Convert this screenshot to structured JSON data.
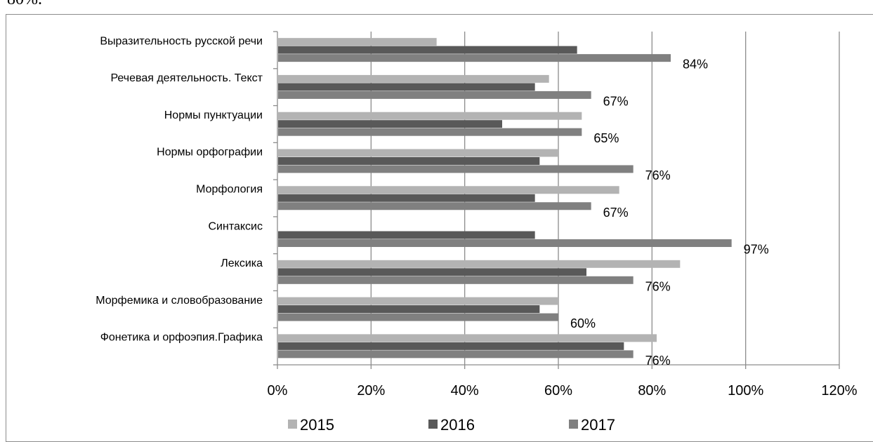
{
  "page": {
    "top_text_fragment": "80%."
  },
  "chart_data": {
    "type": "bar",
    "orientation": "horizontal",
    "categories": [
      "Выразительность русской речи",
      "Речевая деятельность. Текст",
      "Нормы пунктуации",
      "Нормы орфографии",
      "Морфология",
      "Синтаксис",
      "Лексика",
      "Морфемика и словобразование",
      "Фонетика и орфоэпия.Графика"
    ],
    "series": [
      {
        "name": "2015",
        "color": "#b3b3b3",
        "values": [
          34,
          58,
          65,
          60,
          73,
          0,
          86,
          60,
          81
        ]
      },
      {
        "name": "2016",
        "color": "#595959",
        "values": [
          64,
          55,
          48,
          56,
          55,
          55,
          66,
          56,
          74
        ]
      },
      {
        "name": "2017",
        "color": "#808080",
        "values": [
          84,
          67,
          65,
          76,
          67,
          97,
          76,
          60,
          76
        ]
      }
    ],
    "data_labels": {
      "series": "2017",
      "texts": [
        "84%",
        "67%",
        "65%",
        "76%",
        "67%",
        "97%",
        "76%",
        "60%",
        "76%"
      ]
    },
    "x_ticks": [
      "0%",
      "20%",
      "40%",
      "60%",
      "80%",
      "100%",
      "120%"
    ],
    "xlim": [
      0,
      120
    ],
    "grid": true,
    "legend_position": "bottom"
  }
}
